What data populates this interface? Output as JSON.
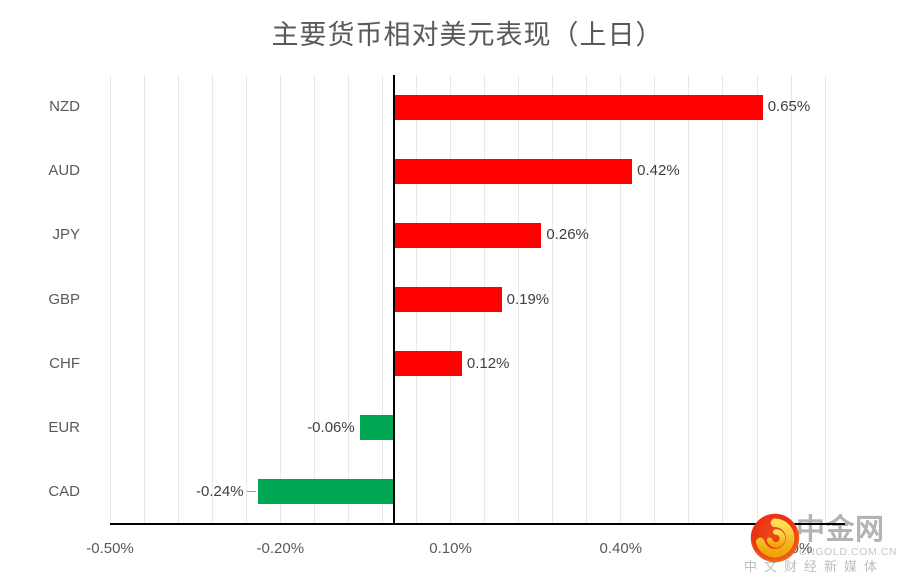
{
  "chart_data": {
    "type": "bar",
    "orientation": "horizontal",
    "title": "主要货币相对美元表现（上日）",
    "categories": [
      "NZD",
      "AUD",
      "JPY",
      "GBP",
      "CHF",
      "EUR",
      "CAD"
    ],
    "values": [
      0.65,
      0.42,
      0.26,
      0.19,
      0.12,
      -0.06,
      -0.24
    ],
    "value_labels": [
      "0.65%",
      "0.42%",
      "0.26%",
      "0.19%",
      "0.12%",
      "-0.06%",
      "-0.24%"
    ],
    "x_ticks": [
      "-0.50%",
      "-0.20%",
      "0.10%",
      "0.40%",
      "0.70%"
    ],
    "x_tick_values": [
      -0.5,
      -0.2,
      0.1,
      0.4,
      0.7
    ],
    "xlim": [
      -0.5,
      0.795
    ],
    "minor_grid_step": 0.06,
    "grid": "on",
    "legend": "none",
    "xlabel": "",
    "ylabel": "",
    "detached_label_indices": [
      6
    ],
    "colors": {
      "positive": "#fe0000",
      "negative": "#00a651",
      "grid": "#e9e9e9",
      "axis": "#000000",
      "value_label": "#404040",
      "category_label": "#595959",
      "tick_label": "#595959",
      "title": "#595959",
      "leader": "#9e9e9e"
    }
  },
  "watermark": {
    "brand": "中金网",
    "domain": "CNGOLD.COM.CN",
    "tagline": "中文财经新媒体"
  }
}
